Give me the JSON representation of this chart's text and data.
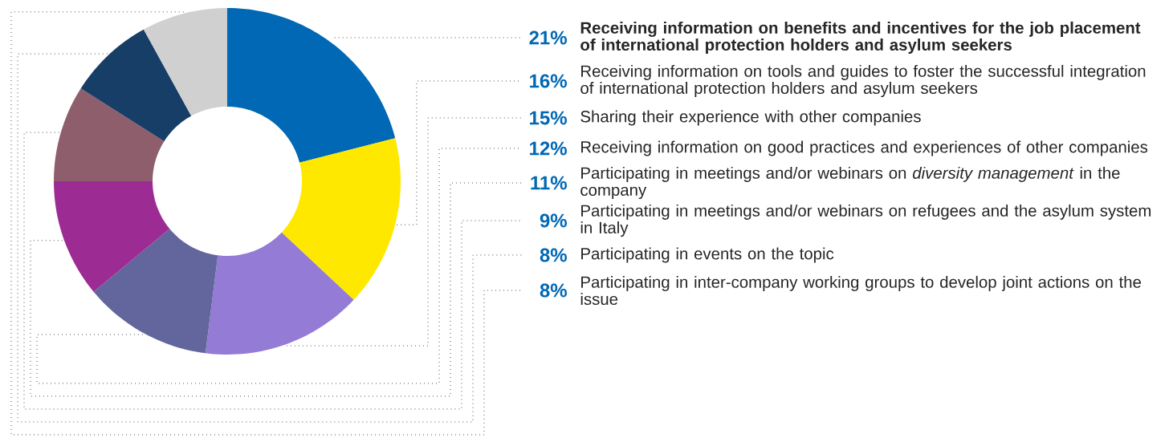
{
  "chart_data": {
    "type": "donut",
    "categories": [
      "**Receiving information on benefits and incentives for the job placement of international protection holders and asylum seekers**",
      "Receiving information on tools and guides to foster the successful integration of international protection holders and asylum seekers",
      "Sharing their experience with other companies",
      "Receiving information on good practices and experiences of other companies",
      "Participating in meetings and/or webinars on *diversity management* in the company",
      "Participating in meetings and/or webinars on refugees and the asylum system in Italy",
      "Participating in events on the topic",
      "Participating in inter-company working groups to develop joint actions on the issue"
    ],
    "values": [
      21,
      16,
      15,
      12,
      11,
      9,
      8,
      8
    ],
    "value_labels": [
      "21%",
      "16%",
      "15%",
      "12%",
      "11%",
      "9%",
      "8%",
      "8%"
    ],
    "colors": [
      "#0068b4",
      "#ffe800",
      "#937bd6",
      "#62669c",
      "#9c2c94",
      "#8e5e6c",
      "#163e66",
      "#d0d0d0"
    ]
  }
}
